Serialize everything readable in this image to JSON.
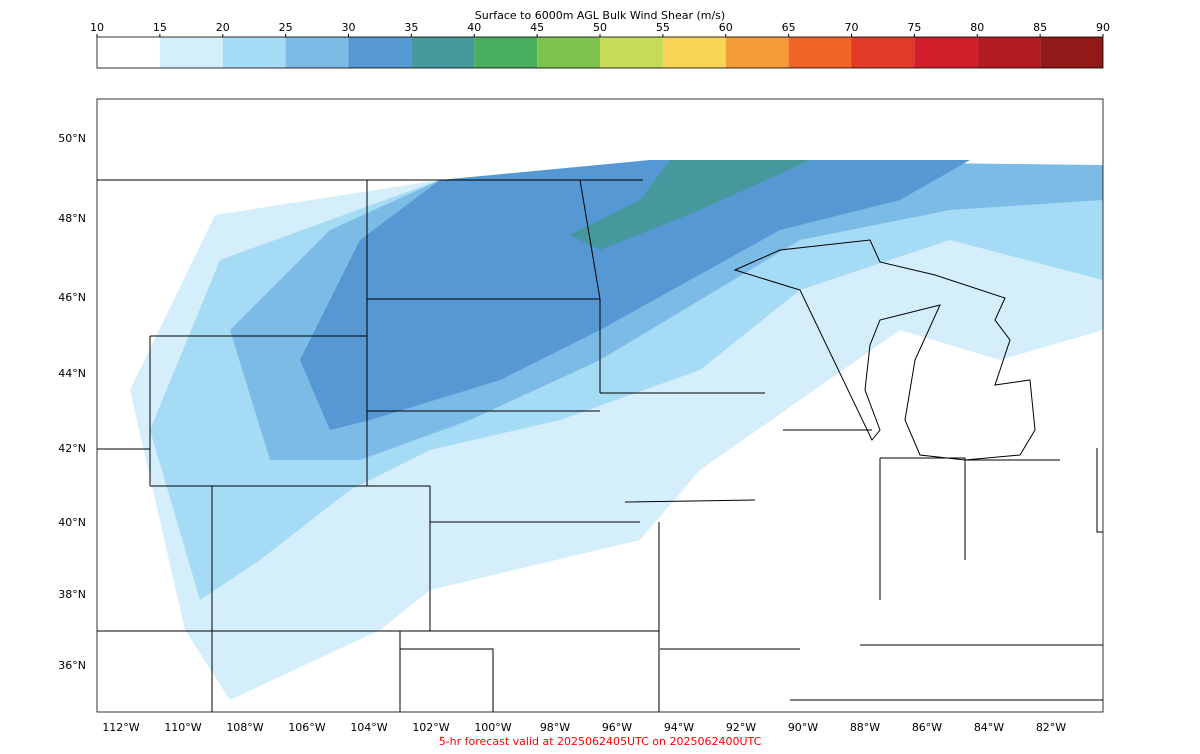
{
  "colorbar": {
    "title": "Surface to 6000m AGL Bulk Wind Shear (m/s)",
    "ticks": [
      10,
      15,
      20,
      25,
      30,
      35,
      40,
      45,
      50,
      55,
      60,
      65,
      70,
      75,
      80,
      85,
      90
    ],
    "colors": [
      "#ffffff",
      "#d5eefb",
      "#a6dbf6",
      "#7bbbe6",
      "#5598d3",
      "#45999c",
      "#4aae5f",
      "#7cc34c",
      "#c6dc56",
      "#f8d454",
      "#f59b3a",
      "#f26528",
      "#e13b27",
      "#d01f2b",
      "#b41c22",
      "#931818"
    ]
  },
  "map": {
    "lat_labels": [
      "50°N",
      "48°N",
      "46°N",
      "44°N",
      "42°N",
      "40°N",
      "38°N",
      "36°N"
    ],
    "lon_labels": [
      "112°W",
      "110°W",
      "108°W",
      "106°W",
      "104°W",
      "102°W",
      "100°W",
      "98°W",
      "96°W",
      "94°W",
      "92°W",
      "90°W",
      "88°W",
      "86°W",
      "84°W",
      "82°W"
    ]
  },
  "footer": "5-hr forecast valid at 2025062405UTC on 2025062400UTC"
}
